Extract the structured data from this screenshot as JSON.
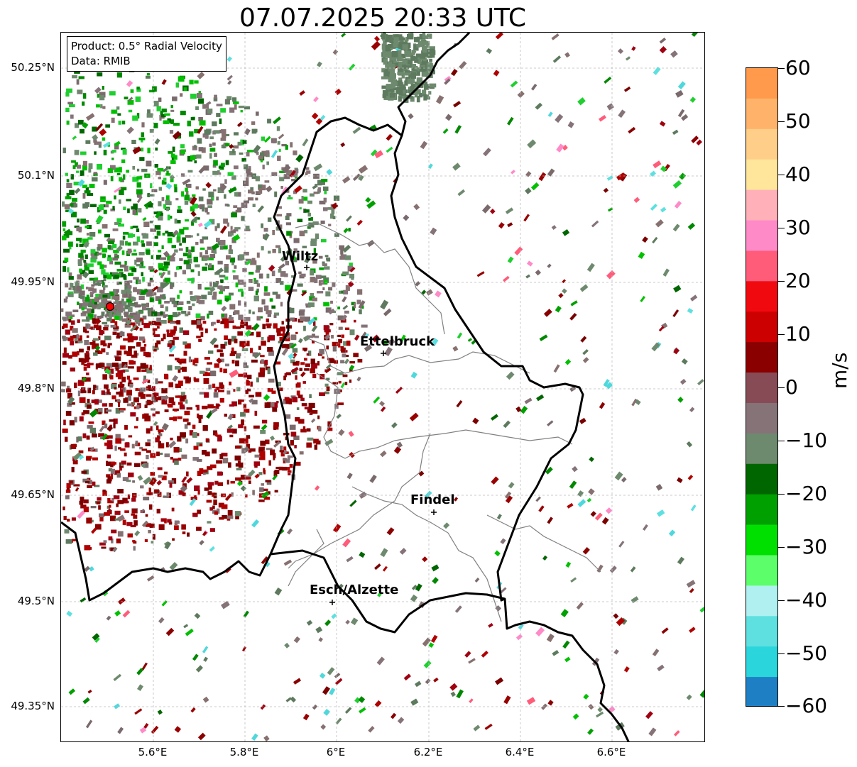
{
  "title": "07.07.2025 20:33 UTC",
  "info_box": {
    "product": "Product: 0.5° Radial Velocity",
    "data": "Data: RMIB"
  },
  "axes": {
    "lat_labels": [
      "50.25°N",
      "50.1°N",
      "49.95°N",
      "49.8°N",
      "49.65°N",
      "49.5°N",
      "49.35°N"
    ],
    "lon_labels": [
      "5.6°E",
      "5.8°E",
      "6°E",
      "6.2°E",
      "6.4°E",
      "6.6°E"
    ]
  },
  "cities": [
    {
      "name": "Wiltz"
    },
    {
      "name": "Ettelbruck"
    },
    {
      "name": "Findel"
    },
    {
      "name": "Esch/Alzette"
    }
  ],
  "colorbar": {
    "unit": "m/s",
    "ticks": [
      "60",
      "50",
      "40",
      "30",
      "20",
      "10",
      "0",
      "−10",
      "−20",
      "−30",
      "−40",
      "−50",
      "−60"
    ],
    "colors": [
      "#ff9a4c",
      "#ffb36a",
      "#ffcf8a",
      "#ffe69a",
      "#ffb0b8",
      "#ff8ac8",
      "#ff5c7a",
      "#f00a10",
      "#cc0000",
      "#8a0000",
      "#874b55",
      "#857378",
      "#6e8a6e",
      "#006600",
      "#00a000",
      "#00e000",
      "#5cff6a",
      "#b0f0f0",
      "#5ee0e0",
      "#2ad6dc",
      "#1f7fc4"
    ]
  },
  "colors": {
    "radar_site": "#ff0000",
    "border": "#000000",
    "admin_line": "#808080",
    "grid": "#bbbbbb"
  }
}
